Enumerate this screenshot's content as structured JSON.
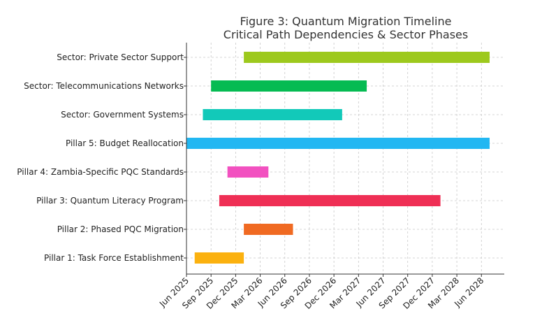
{
  "chart_data": {
    "type": "gantt",
    "title": "Figure 3: Quantum Migration Timeline",
    "subtitle": "Critical Path Dependencies & Sector Phases",
    "xlabel": "",
    "ylabel": "",
    "grid": true,
    "x_ticks": [
      "Jun 2025",
      "Sep 2025",
      "Dec 2025",
      "Mar 2026",
      "Jun 2026",
      "Sep 2026",
      "Dec 2026",
      "Mar 2027",
      "Jun 2027",
      "Sep 2027",
      "Dec 2027",
      "Mar 2028",
      "Jun 2028"
    ],
    "x_range_months": [
      0,
      37.5
    ],
    "x_origin": "Jun 2025",
    "tasks": [
      {
        "name": "Pillar 1: Task Force Establishment",
        "start": 1.0,
        "end": 7.0,
        "color": "#FBB10F"
      },
      {
        "name": "Pillar 2: Phased PQC Migration",
        "start": 7.0,
        "end": 13.0,
        "color": "#F06A22"
      },
      {
        "name": "Pillar 3: Quantum Literacy Program",
        "start": 4.0,
        "end": 31.0,
        "color": "#EF2F55"
      },
      {
        "name": "Pillar 4: Zambia-Specific PQC Standards",
        "start": 5.0,
        "end": 10.0,
        "color": "#F251C0"
      },
      {
        "name": "Pillar 5: Budget Reallocation",
        "start": 0.0,
        "end": 37.0,
        "color": "#22B7F2"
      },
      {
        "name": "Sector: Government Systems",
        "start": 2.0,
        "end": 19.0,
        "color": "#12C9B9"
      },
      {
        "name": "Sector: Telecommunications Networks",
        "start": 3.0,
        "end": 22.0,
        "color": "#05BB52"
      },
      {
        "name": "Sector: Private Sector Support",
        "start": 7.0,
        "end": 37.0,
        "color": "#9DC91D"
      }
    ]
  }
}
